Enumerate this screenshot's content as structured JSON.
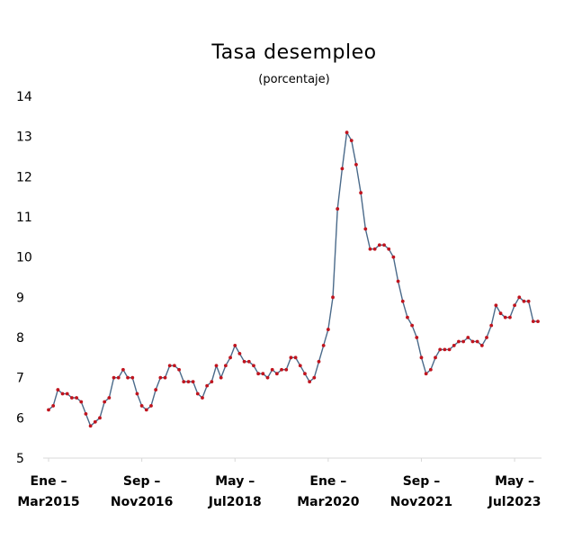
{
  "chart_data": {
    "type": "line",
    "title": "Tasa desempleo",
    "subtitle": "(porcentaje)",
    "xlabel": "",
    "ylabel": "",
    "ylim": [
      5,
      14
    ],
    "yticks": [
      5,
      6,
      7,
      8,
      9,
      10,
      11,
      12,
      13,
      14
    ],
    "grid": false,
    "legend": "none",
    "line_color": "#4a6a8a",
    "marker_color": "#c0141e",
    "x_tick_labels": [
      {
        "line1": "Ene –",
        "line2": "Mar2015"
      },
      {
        "line1": "Sep –",
        "line2": "Nov2016"
      },
      {
        "line1": "May –",
        "line2": "Jul2018"
      },
      {
        "line1": "Ene –",
        "line2": "Mar2020"
      },
      {
        "line1": "Sep –",
        "line2": "Nov2021"
      },
      {
        "line1": "May –",
        "line2": "Jul2023"
      }
    ],
    "x_tick_positions": [
      1,
      21,
      41,
      61,
      81,
      101
    ],
    "x": [
      1,
      2,
      3,
      4,
      5,
      6,
      7,
      8,
      9,
      10,
      11,
      12,
      13,
      14,
      15,
      16,
      17,
      18,
      19,
      20,
      21,
      22,
      23,
      24,
      25,
      26,
      27,
      28,
      29,
      30,
      31,
      32,
      33,
      34,
      35,
      36,
      37,
      38,
      39,
      40,
      41,
      42,
      43,
      44,
      45,
      46,
      47,
      48,
      49,
      50,
      51,
      52,
      53,
      54,
      55,
      56,
      57,
      58,
      59,
      60,
      61,
      62,
      63,
      64,
      65,
      66,
      67,
      68,
      69,
      70,
      71,
      72,
      73,
      74,
      75,
      76,
      77,
      78,
      79,
      80,
      81,
      82,
      83,
      84,
      85,
      86,
      87,
      88,
      89,
      90,
      91,
      92,
      93,
      94,
      95,
      96,
      97,
      98,
      99,
      100,
      101,
      102,
      103,
      104,
      105,
      106
    ],
    "series": [
      {
        "values": [
          6.2,
          6.3,
          6.7,
          6.6,
          6.6,
          6.5,
          6.5,
          6.4,
          6.1,
          5.8,
          5.9,
          6.0,
          6.4,
          6.5,
          7.0,
          7.0,
          7.2,
          7.0,
          7.0,
          6.6,
          6.3,
          6.2,
          6.3,
          6.7,
          7.0,
          7.0,
          7.3,
          7.3,
          7.2,
          6.9,
          6.9,
          6.9,
          6.6,
          6.5,
          6.8,
          6.9,
          7.3,
          7.0,
          7.3,
          7.5,
          7.8,
          7.6,
          7.4,
          7.4,
          7.3,
          7.1,
          7.1,
          7.0,
          7.2,
          7.1,
          7.2,
          7.2,
          7.5,
          7.5,
          7.3,
          7.1,
          6.9,
          7.0,
          7.4,
          7.8,
          8.2,
          9.0,
          11.2,
          12.2,
          13.1,
          12.9,
          12.3,
          11.6,
          10.7,
          10.2,
          10.2,
          10.3,
          10.3,
          10.2,
          10.0,
          9.4,
          8.9,
          8.5,
          8.3,
          8.0,
          7.5,
          7.1,
          7.2,
          7.5,
          7.7,
          7.7,
          7.7,
          7.8,
          7.9,
          7.9,
          8.0,
          7.9,
          7.9,
          7.8,
          8.0,
          8.3,
          8.8,
          8.6,
          8.5,
          8.5,
          8.8,
          9.0,
          8.9,
          8.9,
          8.4,
          8.4
        ]
      }
    ]
  }
}
